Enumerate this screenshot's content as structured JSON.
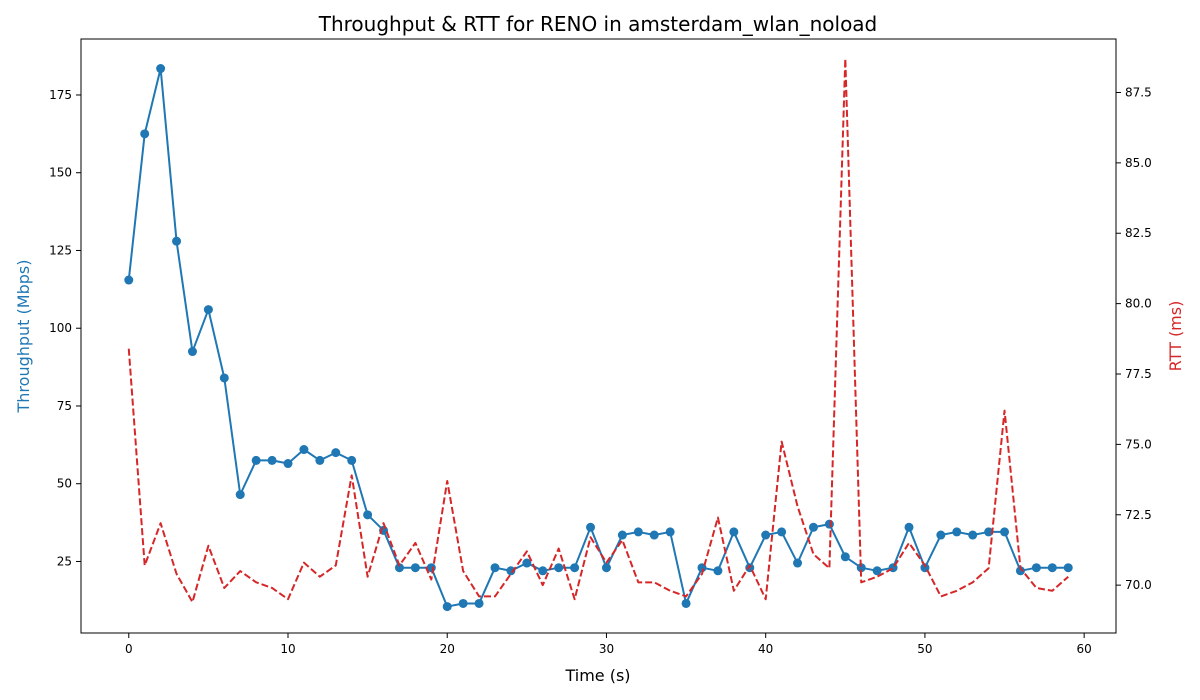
{
  "chart_data": {
    "type": "line",
    "title": "Throughput & RTT for RENO in amsterdam_wlan_noload",
    "xlabel": "Time (s)",
    "ylabel_left": "Throughput (Mbps)",
    "ylabel_right": "RTT (ms)",
    "x": [
      0,
      1,
      2,
      3,
      4,
      5,
      6,
      7,
      8,
      9,
      10,
      11,
      12,
      13,
      14,
      15,
      16,
      17,
      18,
      19,
      20,
      21,
      22,
      23,
      24,
      25,
      26,
      27,
      28,
      29,
      30,
      31,
      32,
      33,
      34,
      35,
      36,
      37,
      38,
      39,
      40,
      41,
      42,
      43,
      44,
      45,
      46,
      47,
      48,
      49,
      50,
      51,
      52,
      53,
      54,
      55,
      56,
      57,
      58,
      59
    ],
    "xlim": [
      -3,
      62
    ],
    "xticks": [
      0,
      10,
      20,
      30,
      40,
      50,
      60
    ],
    "ylim_left": [
      2,
      193
    ],
    "yticks_left": [
      25,
      50,
      75,
      100,
      125,
      150,
      175
    ],
    "ylim_right": [
      68.3,
      89.4
    ],
    "yticks_right": [
      "70.0",
      "72.5",
      "75.0",
      "77.5",
      "80.0",
      "82.5",
      "85.0",
      "87.5"
    ],
    "grid": false,
    "series": [
      {
        "axis": "left",
        "style": "solid-markers",
        "color": "#1f77b4",
        "values": [
          115.5,
          162.5,
          183.5,
          128,
          92.5,
          106,
          84,
          46.5,
          57.5,
          57.5,
          56.5,
          61,
          57.5,
          60,
          57.5,
          40,
          35,
          23,
          23,
          23,
          10.5,
          11.5,
          11.5,
          23,
          22,
          24.5,
          22,
          23,
          23,
          36,
          23,
          33.5,
          34.5,
          33.5,
          34.5,
          11.5,
          23,
          22,
          34.5,
          23,
          33.5,
          34.5,
          24.5,
          36,
          37,
          26.5,
          23,
          22,
          23,
          36,
          23,
          33.5,
          34.5,
          33.5,
          34.5,
          34.5,
          22,
          23,
          23,
          23
        ]
      },
      {
        "axis": "right",
        "style": "dashed",
        "color": "#d62728",
        "values": [
          78.4,
          70.7,
          72.2,
          70.4,
          69.4,
          71.4,
          69.9,
          70.5,
          70.1,
          69.9,
          69.5,
          70.8,
          70.3,
          70.7,
          73.9,
          70.3,
          72.2,
          70.7,
          71.5,
          70.2,
          73.7,
          70.5,
          69.6,
          69.6,
          70.4,
          71.2,
          70,
          71.3,
          69.5,
          71.7,
          70.8,
          71.6,
          70.1,
          70.1,
          69.8,
          69.6,
          70.4,
          72.4,
          69.8,
          70.7,
          69.5,
          75.1,
          72.8,
          71.1,
          70.6,
          88.7,
          70.1,
          70.3,
          70.6,
          71.5,
          70.7,
          69.6,
          69.8,
          70.1,
          70.6,
          76.2,
          70.6,
          69.9,
          69.8,
          70.3
        ]
      }
    ]
  }
}
